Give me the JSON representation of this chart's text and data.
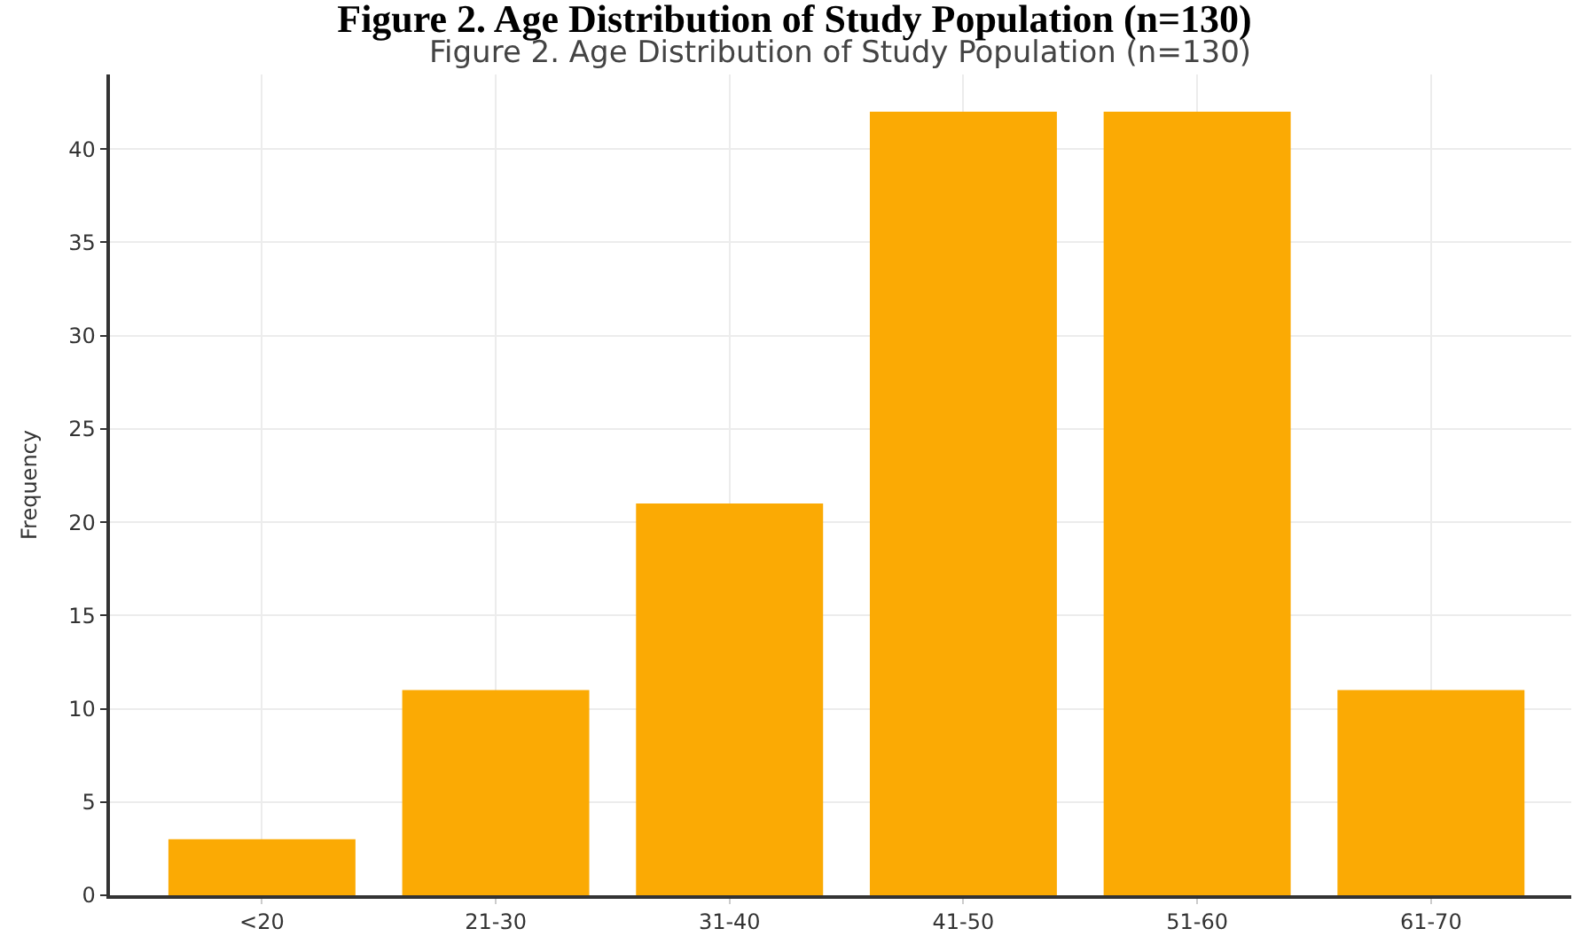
{
  "chart_data": {
    "type": "bar",
    "title": "Figure 2. Age Distribution of Study Population (n=130)",
    "subtitle": "Figure 2. Age Distribution of Study Population (n=130)",
    "ylabel": "Frequency",
    "categories": [
      "<20",
      "21-30",
      "31-40",
      "41-50",
      "51-60",
      "61-70"
    ],
    "values": [
      3,
      11,
      21,
      42,
      42,
      11
    ],
    "color": "#fbaa04",
    "ylim": [
      0,
      44
    ],
    "yticks": [
      0,
      5,
      10,
      15,
      20,
      25,
      30,
      35,
      40
    ],
    "grid": true
  }
}
